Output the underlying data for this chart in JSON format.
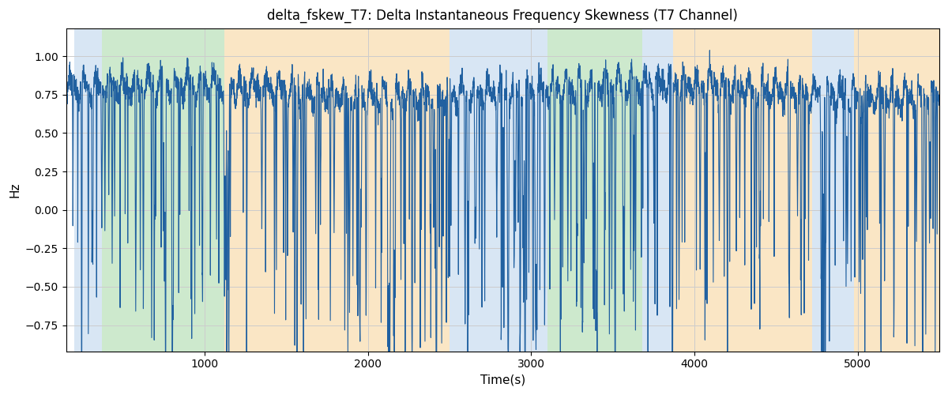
{
  "title": "delta_fskew_T7: Delta Instantaneous Frequency Skewness (T7 Channel)",
  "xlabel": "Time(s)",
  "ylabel": "Hz",
  "xlim": [
    150,
    5500
  ],
  "ylim": [
    -0.92,
    1.18
  ],
  "line_color": "#2060a0",
  "line_width": 0.8,
  "bg_regions": [
    {
      "xstart": 200,
      "xend": 370,
      "color": "#aac8e8",
      "alpha": 0.45
    },
    {
      "xstart": 370,
      "xend": 1120,
      "color": "#90d090",
      "alpha": 0.45
    },
    {
      "xstart": 1120,
      "xend": 2500,
      "color": "#f5c880",
      "alpha": 0.45
    },
    {
      "xstart": 2500,
      "xend": 3100,
      "color": "#aac8e8",
      "alpha": 0.45
    },
    {
      "xstart": 3100,
      "xend": 3680,
      "color": "#90d090",
      "alpha": 0.45
    },
    {
      "xstart": 3680,
      "xend": 3870,
      "color": "#aac8e8",
      "alpha": 0.45
    },
    {
      "xstart": 3870,
      "xend": 4720,
      "color": "#f5c880",
      "alpha": 0.45
    },
    {
      "xstart": 4720,
      "xend": 4980,
      "color": "#aac8e8",
      "alpha": 0.45
    },
    {
      "xstart": 4980,
      "xend": 5520,
      "color": "#f5c880",
      "alpha": 0.45
    }
  ],
  "figsize": [
    12.0,
    5.0
  ],
  "dpi": 100,
  "title_fontsize": 12,
  "axis_label_fontsize": 11,
  "tick_fontsize": 10
}
